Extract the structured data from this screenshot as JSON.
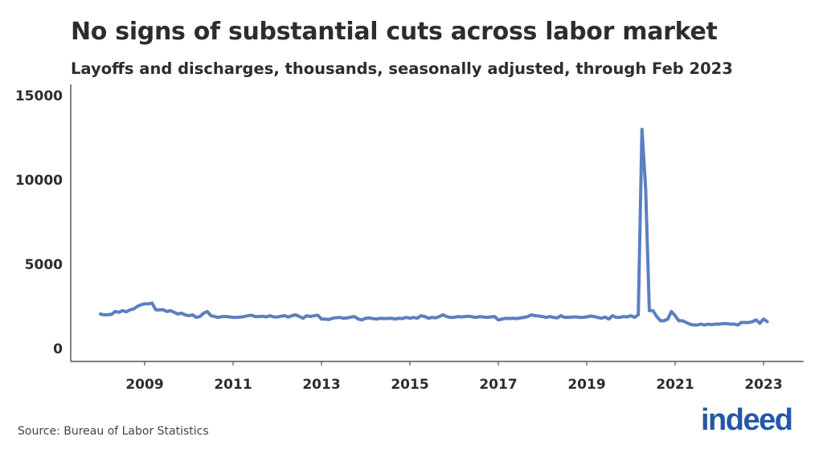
{
  "title": "No signs of substantial cuts across labor market",
  "subtitle": "Layoffs and discharges, thousands, seasonally adjusted, through Feb 2023",
  "source": "Source: Bureau of Labor Statistics",
  "logo": "indeed",
  "colors": {
    "line": "#5b7fc0",
    "brand": "#2557a7",
    "text": "#2d2d2d"
  },
  "chart_data": {
    "type": "line",
    "title": "No signs of substantial cuts across labor market",
    "subtitle": "Layoffs and discharges, thousands, seasonally adjusted, through Feb 2023",
    "xlabel": "",
    "ylabel": "",
    "x_start": "2008-01",
    "x_end": "2023-02",
    "frequency": "monthly",
    "ylim": [
      0,
      15000
    ],
    "yticks": [
      "0",
      "5000",
      "10000",
      "15000"
    ],
    "xticks": [
      "2009",
      "2011",
      "2013",
      "2015",
      "2017",
      "2019",
      "2021",
      "2023"
    ],
    "grid": false,
    "values": [
      2050,
      2000,
      2010,
      2030,
      2200,
      2150,
      2250,
      2180,
      2300,
      2350,
      2500,
      2600,
      2650,
      2650,
      2700,
      2300,
      2300,
      2310,
      2200,
      2250,
      2150,
      2050,
      2100,
      2000,
      1950,
      2000,
      1850,
      1900,
      2100,
      2200,
      1950,
      1900,
      1850,
      1900,
      1900,
      1880,
      1850,
      1850,
      1870,
      1900,
      1950,
      1980,
      1900,
      1900,
      1920,
      1880,
      1950,
      1880,
      1870,
      1920,
      1950,
      1870,
      1950,
      2000,
      1900,
      1800,
      1950,
      1900,
      1950,
      1980,
      1750,
      1750,
      1720,
      1800,
      1830,
      1850,
      1800,
      1820,
      1870,
      1900,
      1750,
      1700,
      1800,
      1820,
      1780,
      1750,
      1800,
      1780,
      1790,
      1800,
      1750,
      1800,
      1780,
      1850,
      1800,
      1850,
      1800,
      1950,
      1900,
      1800,
      1850,
      1820,
      1900,
      2000,
      1900,
      1850,
      1850,
      1900,
      1880,
      1900,
      1920,
      1880,
      1850,
      1900,
      1870,
      1850,
      1880,
      1900,
      1700,
      1750,
      1800,
      1780,
      1800,
      1780,
      1820,
      1850,
      1900,
      2000,
      1950,
      1930,
      1900,
      1850,
      1900,
      1850,
      1820,
      1950,
      1850,
      1850,
      1870,
      1880,
      1850,
      1850,
      1880,
      1930,
      1900,
      1850,
      1800,
      1870,
      1750,
      1950,
      1850,
      1850,
      1900,
      1880,
      1950,
      1850,
      2000,
      13000,
      9500,
      2250,
      2250,
      1900,
      1650,
      1650,
      1750,
      2200,
      1950,
      1650,
      1650,
      1550,
      1450,
      1400,
      1400,
      1450,
      1400,
      1450,
      1420,
      1450,
      1450,
      1480,
      1480,
      1450,
      1450,
      1400,
      1550,
      1550,
      1550,
      1600,
      1700,
      1500,
      1750,
      1600
    ]
  }
}
